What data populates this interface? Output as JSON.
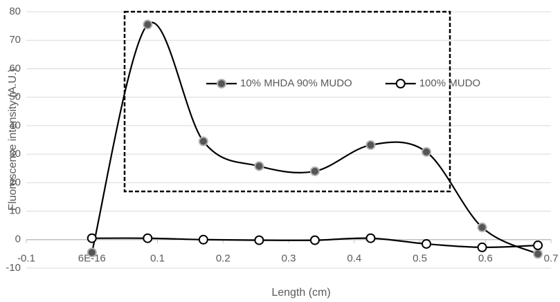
{
  "chart_data": {
    "type": "scatter",
    "x_label": "Length (cm)",
    "y_label": "Fluorescence intensity (A.U.)",
    "x": [
      0,
      0.085,
      0.17,
      0.255,
      0.34,
      0.425,
      0.51,
      0.595,
      0.68
    ],
    "series": [
      {
        "name": "10% MHDA 90% MUDO",
        "color": "#000000",
        "marker_fill": "#555555",
        "values": [
          -4.5,
          75.5,
          34.5,
          25.8,
          24,
          33.2,
          30.8,
          4.3,
          -5
        ]
      },
      {
        "name": "100% MUDO",
        "color": "#000000",
        "marker_fill": "#ffffff",
        "values": [
          0.5,
          0.5,
          0,
          -0.2,
          -0.2,
          0.5,
          -1.5,
          -2.7,
          -2
        ]
      }
    ],
    "xlim": [
      -0.1,
      0.7
    ],
    "xticks": [
      -0.1,
      {
        "value": 6e-16,
        "label": "6E-16"
      },
      0.1,
      0.2,
      0.3,
      0.4,
      0.5,
      0.6,
      0.7
    ],
    "ylim": [
      -10,
      80
    ],
    "yticks": [
      -10,
      0,
      10,
      20,
      30,
      40,
      50,
      60,
      70,
      80
    ],
    "grid": true,
    "smooth": true
  }
}
